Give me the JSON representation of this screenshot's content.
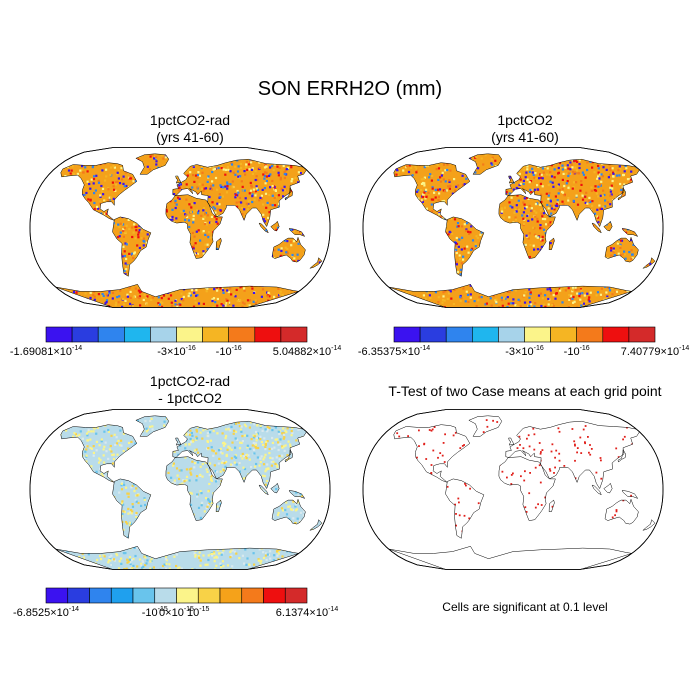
{
  "title": "SON ERRH2O (mm)",
  "colors": {
    "ocean": "#ffffff",
    "outline": "#000000",
    "antarctica": "#f5a21a",
    "sig_dot": "#e0201b",
    "land_base_model": "#f4a11a",
    "land_base_diff": "#b9dcea"
  },
  "panels": [
    {
      "id": "rad",
      "title_line1": "1pctCO2-rad",
      "title_line2": "(yrs 41-60)",
      "style": "model",
      "colorbar": {
        "colors": [
          "#3b12f0",
          "#2a3de0",
          "#2f84ee",
          "#1fb6ee",
          "#a7d3ea",
          "#fbf48a",
          "#f5b523",
          "#f47a1b",
          "#ee0f0f",
          "#d42a2a"
        ],
        "labels": [
          {
            "mantissa": "-1.69081",
            "exp": "-14"
          },
          {
            "mantissa": "-3",
            "exp": "-16"
          },
          {
            "mantissa": "-10",
            "exp": "-16",
            "plain": true
          },
          {
            "mantissa": "5.04882",
            "exp": "-14"
          }
        ]
      }
    },
    {
      "id": "base",
      "title_line1": "1pctCO2",
      "title_line2": "(yrs 41-60)",
      "style": "model",
      "colorbar": {
        "colors": [
          "#3b12f0",
          "#2a3de0",
          "#2f84ee",
          "#1fb6ee",
          "#a7d3ea",
          "#fbf48a",
          "#f5b523",
          "#f47a1b",
          "#ee0f0f",
          "#d42a2a"
        ],
        "labels": [
          {
            "mantissa": "-6.35375",
            "exp": "-14"
          },
          {
            "mantissa": "-3",
            "exp": "-16"
          },
          {
            "mantissa": "-10",
            "exp": "-16",
            "plain": true
          },
          {
            "mantissa": "7.40779",
            "exp": "-14"
          }
        ]
      }
    },
    {
      "id": "diff",
      "title_line1": "1pctCO2-rad",
      "title_line2": "- 1pctCO2",
      "style": "diff",
      "colorbar": {
        "colors": [
          "#3b12f0",
          "#2a3de0",
          "#2f84ee",
          "#1fa0ee",
          "#69c4ec",
          "#b9dcea",
          "#fbf48a",
          "#f8d247",
          "#f5a21a",
          "#f47a1b",
          "#ee0f0f",
          "#d42a2a"
        ],
        "labels": [
          {
            "mantissa": "-6.8525",
            "exp": "-14"
          },
          {
            "mantissa": "-10",
            "exp": "-15",
            "plain": true
          },
          {
            "mantissa": "0",
            "exp": "-15"
          },
          {
            "mantissa": "10",
            "exp": "-15",
            "plain": true
          },
          {
            "mantissa": "6.1374",
            "exp": "-14"
          }
        ]
      }
    },
    {
      "id": "ttest",
      "title_line1": "T-Test of two Case means at each grid point",
      "title_line2": "",
      "style": "ttest",
      "note": "Cells are significant at 0.1 level"
    }
  ]
}
